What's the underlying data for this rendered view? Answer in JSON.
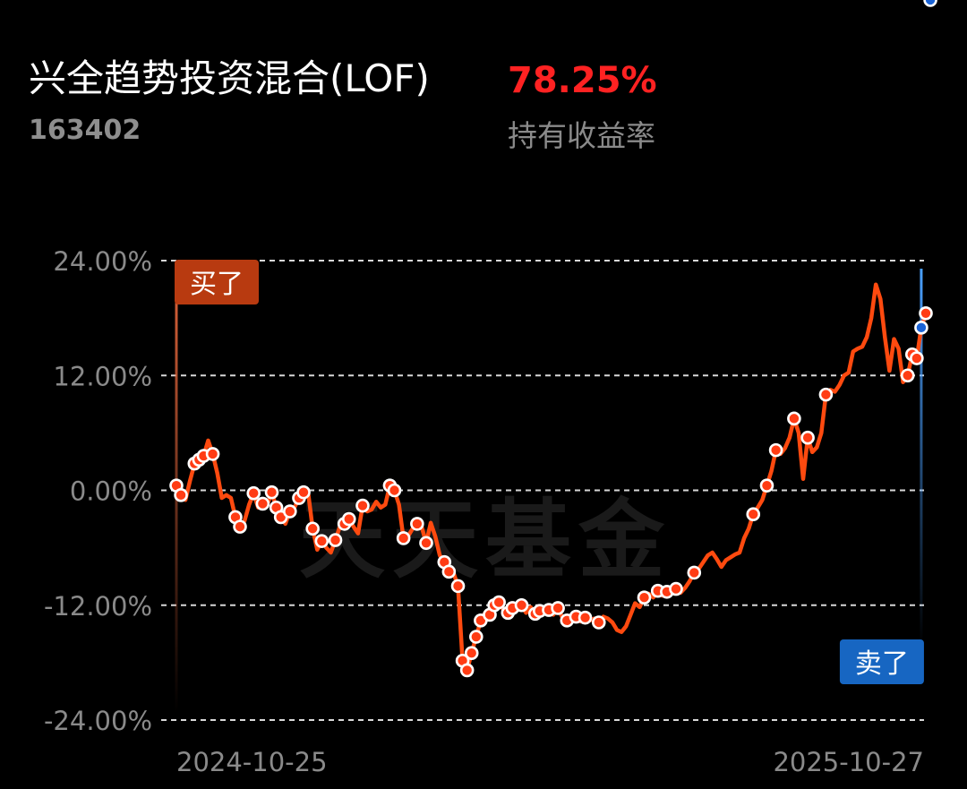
{
  "header": {
    "fund_name": "兴全趋势投资混合(LOF)",
    "fund_code": "163402",
    "return_value": "78.25%",
    "return_label": "持有收益率"
  },
  "watermark": "天天基金",
  "markers": {
    "buy_label": "买了",
    "sell_label": "卖了",
    "buy_color": "#b83a10",
    "sell_color": "#1766c2"
  },
  "colors": {
    "line": "#ff4a0f",
    "return_text": "#ff2222",
    "dot_fill": "#ff3c14",
    "dot_sell_fill": "#1a63d6"
  },
  "chart_data": {
    "type": "line",
    "title": "",
    "xlabel": "",
    "ylabel": "",
    "ylim": [
      -24,
      24
    ],
    "grid": true,
    "y_ticks": [
      24,
      12,
      0,
      -12,
      -24
    ],
    "y_tick_labels": [
      "24.00%",
      "12.00%",
      "0.00%",
      "-12.00%",
      "-24.00%"
    ],
    "x_tick_labels": [
      "2024-10-25",
      "2025-10-27"
    ],
    "buy_index": 0,
    "sell_index": 164,
    "series": [
      {
        "values": [
          0.5,
          -0.5,
          -1.0,
          1.0,
          2.8,
          3.2,
          3.6,
          5.2,
          3.8,
          1.8,
          -0.8,
          -0.5,
          -0.8,
          -2.8,
          -3.8,
          -3.2,
          -1.5,
          -0.3,
          -1.8,
          -1.4,
          -1.5,
          -0.2,
          -1.8,
          -2.8,
          -3.5,
          -2.2,
          -1.8,
          -0.8,
          -0.2,
          -0.2,
          -4.0,
          -6.2,
          -5.3,
          -6.0,
          -6.5,
          -5.2,
          -3.8,
          -3.5,
          -3.0,
          -3.8,
          -4.5,
          -1.6,
          -2.2,
          -2.0,
          -1.2,
          -1.8,
          -1.5,
          0.5,
          0.0,
          -1.5,
          -5.0,
          -4.8,
          -4.0,
          -3.5,
          -3.8,
          -5.5,
          -3.4,
          -4.8,
          -6.8,
          -7.5,
          -8.5,
          -8.6,
          -10.0,
          -17.8,
          -18.8,
          -17.0,
          -15.3,
          -13.6,
          -12.8,
          -13.0,
          -12.0,
          -11.7,
          -12.5,
          -12.8,
          -12.3,
          -12.5,
          -12.0,
          -12.8,
          -12.2,
          -12.9,
          -12.6,
          -12.2,
          -12.5,
          -13.0,
          -12.3,
          -13.3,
          -13.6,
          -13.0,
          -13.2,
          -13.7,
          -13.3,
          -13.6,
          -13.4,
          -13.8,
          -13.2,
          -13.4,
          -13.8,
          -14.6,
          -14.8,
          -14.2,
          -13.0,
          -11.8,
          -12.2,
          -11.2,
          -10.8,
          -11.2,
          -10.5,
          -11.0,
          -10.6,
          -10.8,
          -10.3,
          -10.7,
          -10.2,
          -9.5,
          -8.6,
          -8.2,
          -7.5,
          -6.8,
          -6.5,
          -7.2,
          -8.0,
          -7.3,
          -7.0,
          -6.7,
          -6.5,
          -5.0,
          -4.0,
          -2.5,
          -1.8,
          -1.0,
          0.5,
          2.0,
          4.2,
          3.8,
          4.4,
          5.5,
          7.5,
          6.0,
          1.2,
          5.5,
          4.0,
          4.5,
          6.0,
          10.0,
          10.5,
          10.3,
          11.0,
          12.0,
          12.3,
          14.5,
          14.8,
          15.0,
          16.0,
          18.0,
          21.5,
          20.0,
          16.0,
          12.5,
          15.8,
          14.8,
          11.3,
          12.0,
          14.2,
          13.8,
          17.0,
          18.5
        ],
        "dot_indices": [
          0,
          1,
          4,
          5,
          6,
          8,
          13,
          14,
          17,
          19,
          21,
          22,
          23,
          25,
          27,
          28,
          30,
          32,
          35,
          37,
          38,
          41,
          47,
          48,
          50,
          53,
          55,
          59,
          60,
          62,
          63,
          64,
          65,
          66,
          67,
          69,
          70,
          71,
          73,
          74,
          76,
          79,
          80,
          82,
          84,
          86,
          88,
          90,
          93,
          103,
          106,
          108,
          110,
          114,
          127,
          130,
          132,
          136,
          139,
          143,
          161,
          162,
          163,
          164,
          165,
          166
        ]
      }
    ]
  }
}
